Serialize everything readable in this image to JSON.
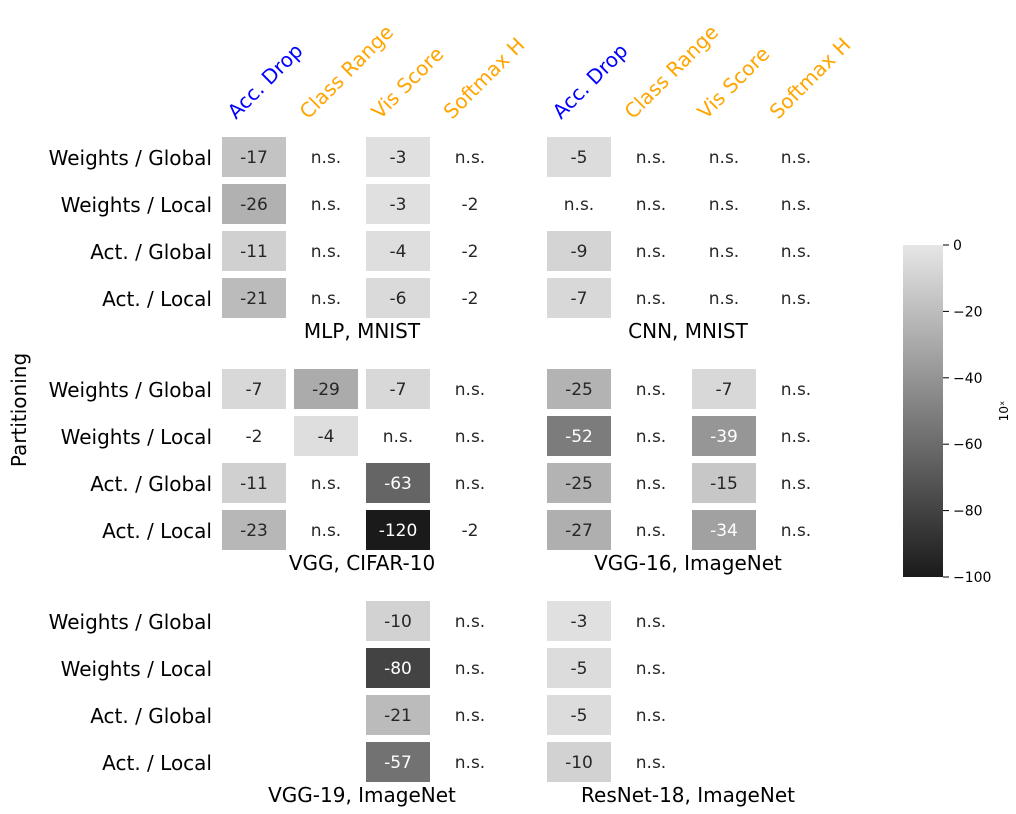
{
  "chart_data": {
    "type": "heatmap",
    "ylabel": "Partitioning",
    "colors": {
      "acc_header": "#0000ff",
      "other_header": "#ffa500",
      "text_dark": "#262626",
      "text_light": "#ffffff",
      "cmap_light": "#e6e6e6",
      "cmap_dark": "#1a1a1a"
    },
    "colorbar": {
      "label": "10ˣ",
      "ticks": [
        "0",
        "−20",
        "−40",
        "−60",
        "−80",
        "−100"
      ],
      "range": [
        -100,
        0
      ],
      "cmap": "grays"
    },
    "columns_left": [
      "Acc. Drop",
      "Class Range",
      "Vis Score",
      "Softmax H"
    ],
    "columns_right": [
      "Acc. Drop",
      "Class Range",
      "Vis Score",
      "Softmax H"
    ],
    "rows": [
      "Weights / Global",
      "Weights / Local",
      "Act. / Global",
      "Act. / Local"
    ],
    "panels": [
      {
        "title": "MLP, MNIST",
        "values": [
          [
            "-17",
            "n.s.",
            "-3",
            "n.s."
          ],
          [
            "-26",
            "n.s.",
            "-3",
            "-2"
          ],
          [
            "-11",
            "n.s.",
            "-4",
            "-2"
          ],
          [
            "-21",
            "n.s.",
            "-6",
            "-2"
          ]
        ]
      },
      {
        "title": "CNN, MNIST",
        "values": [
          [
            "-5",
            "n.s.",
            "n.s.",
            "n.s."
          ],
          [
            "n.s.",
            "n.s.",
            "n.s.",
            "n.s."
          ],
          [
            "-9",
            "n.s.",
            "n.s.",
            "n.s."
          ],
          [
            "-7",
            "n.s.",
            "n.s.",
            "n.s."
          ]
        ]
      },
      {
        "title": "VGG, CIFAR-10",
        "values": [
          [
            "-7",
            "-29",
            "-7",
            "n.s."
          ],
          [
            "-2",
            "-4",
            "n.s.",
            "n.s."
          ],
          [
            "-11",
            "n.s.",
            "-63",
            "n.s."
          ],
          [
            "-23",
            "n.s.",
            "-120",
            "-2"
          ]
        ]
      },
      {
        "title": "VGG-16, ImageNet",
        "values": [
          [
            "-25",
            "n.s.",
            "-7",
            "n.s."
          ],
          [
            "-52",
            "n.s.",
            "-39",
            "n.s."
          ],
          [
            "-25",
            "n.s.",
            "-15",
            "n.s."
          ],
          [
            "-27",
            "n.s.",
            "-34",
            "n.s."
          ]
        ]
      },
      {
        "title": "VGG-19, ImageNet",
        "values": [
          [
            "",
            "",
            "-10",
            "n.s."
          ],
          [
            "",
            "",
            "-80",
            "n.s."
          ],
          [
            "",
            "",
            "-21",
            "n.s."
          ],
          [
            "",
            "",
            "-57",
            "n.s."
          ]
        ]
      },
      {
        "title": "ResNet-18, ImageNet",
        "values": [
          [
            "-3",
            "n.s.",
            "",
            ""
          ],
          [
            "-5",
            "n.s.",
            "",
            ""
          ],
          [
            "-5",
            "n.s.",
            "",
            ""
          ],
          [
            "-10",
            "n.s.",
            "",
            ""
          ]
        ]
      }
    ]
  }
}
